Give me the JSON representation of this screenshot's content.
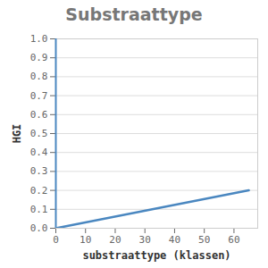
{
  "chart_data": {
    "type": "line",
    "title": "Substraattype",
    "x_label": "substraattype (klassen)",
    "y_label": "HGI",
    "x": [
      0,
      65
    ],
    "values": [
      0,
      0.2
    ],
    "color": "#4a87c0",
    "xlim": [
      0,
      68
    ],
    "xticks": [
      0,
      10,
      20,
      30,
      40,
      50,
      60
    ],
    "ylim": [
      0,
      1
    ],
    "yticks": [
      {
        "value": 0,
        "label": "0.0"
      },
      0.1,
      0.2,
      0.3,
      0.4,
      0.5,
      0.6,
      0.7,
      0.8,
      0.9,
      {
        "value": 1,
        "label": "1.0"
      }
    ],
    "grid": true
  }
}
